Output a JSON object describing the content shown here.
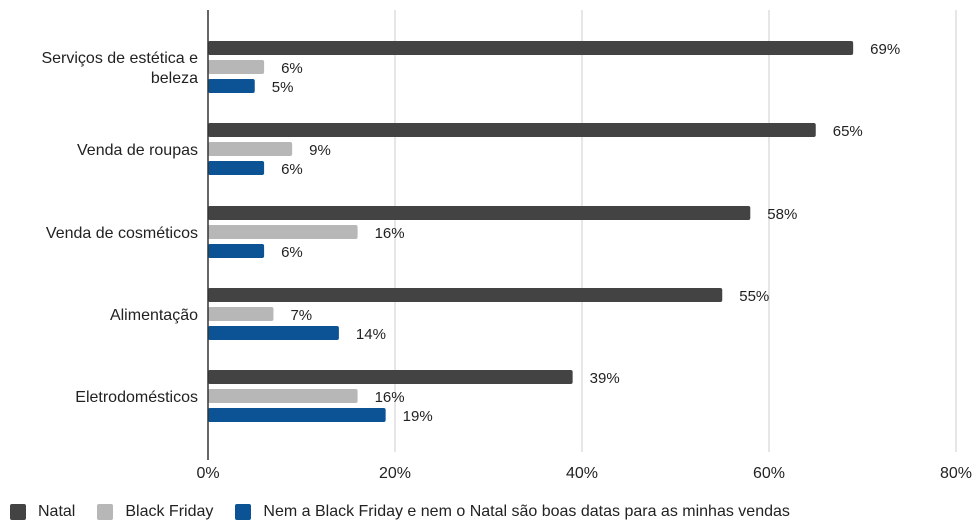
{
  "chart_data": {
    "type": "bar",
    "orientation": "horizontal",
    "categories": [
      "Serviços de estética e beleza",
      "Venda de roupas",
      "Venda de cosméticos",
      "Alimentação",
      "Eletrodomésticos"
    ],
    "series": [
      {
        "name": "Natal",
        "values": [
          69,
          65,
          58,
          55,
          39
        ],
        "labels": [
          "69%",
          "65%",
          "58%",
          "55%",
          "39%"
        ],
        "color": "#434343"
      },
      {
        "name": "Black Friday",
        "values": [
          6,
          9,
          16,
          7,
          16
        ],
        "labels": [
          "6%",
          "9%",
          "16%",
          "7%",
          "16%"
        ],
        "color": "#b7b7b7"
      },
      {
        "name": "Nem a Black Friday e nem o Natal são boas datas para as minhas vendas",
        "values": [
          5,
          6,
          6,
          14,
          19
        ],
        "labels": [
          "5%",
          "6%",
          "6%",
          "14%",
          "19%"
        ],
        "color": "#0b5394"
      }
    ],
    "xlim": [
      0,
      80
    ],
    "x_ticks": [
      0,
      20,
      40,
      60,
      80
    ],
    "x_tick_labels": [
      "0%",
      "20%",
      "40%",
      "60%",
      "80%"
    ],
    "grid": true,
    "legend_position": "bottom-left",
    "title": "",
    "xlabel": "",
    "ylabel": ""
  }
}
